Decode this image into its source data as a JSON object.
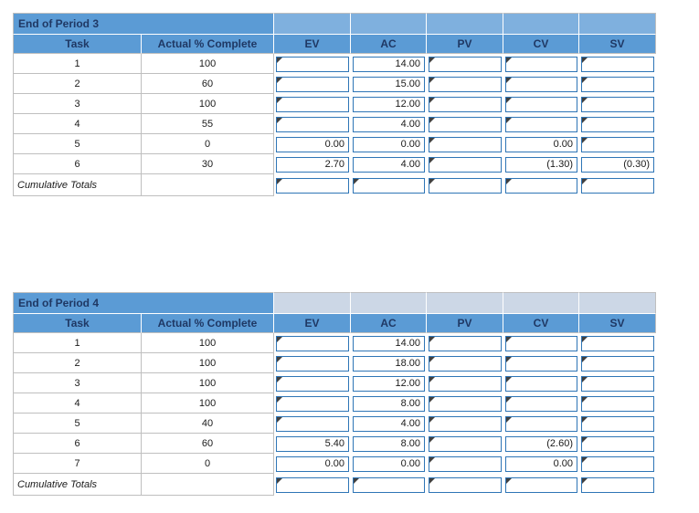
{
  "colors": {
    "header_blue": "#5b9bd5",
    "header_text": "#1f3864",
    "grid_border": "#bfbfbf",
    "box_border": "#2e75b6",
    "flag": "#404040",
    "value_text": "#1a1a1a"
  },
  "columns": [
    {
      "key": "task",
      "label": "Task"
    },
    {
      "key": "pct",
      "label": "Actual % Complete"
    },
    {
      "key": "ev",
      "label": "EV"
    },
    {
      "key": "ac",
      "label": "AC"
    },
    {
      "key": "pv",
      "label": "PV"
    },
    {
      "key": "cv",
      "label": "CV"
    },
    {
      "key": "sv",
      "label": "SV"
    }
  ],
  "tables": [
    {
      "title": "End of Period 3",
      "title_fill_color": "#7fb0de",
      "footer_label": "Cumulative Totals",
      "rows": [
        {
          "task": "1",
          "pct": "100",
          "ev": "",
          "ac": "14.00",
          "pv": "",
          "cv": "",
          "sv": ""
        },
        {
          "task": "2",
          "pct": "60",
          "ev": "",
          "ac": "15.00",
          "pv": "",
          "cv": "",
          "sv": ""
        },
        {
          "task": "3",
          "pct": "100",
          "ev": "",
          "ac": "12.00",
          "pv": "",
          "cv": "",
          "sv": ""
        },
        {
          "task": "4",
          "pct": "55",
          "ev": "",
          "ac": "4.00",
          "pv": "",
          "cv": "",
          "sv": ""
        },
        {
          "task": "5",
          "pct": "0",
          "ev": "0.00",
          "ac": "0.00",
          "pv": "",
          "cv": "0.00",
          "sv": ""
        },
        {
          "task": "6",
          "pct": "30",
          "ev": "2.70",
          "ac": "4.00",
          "pv": "",
          "cv": "(1.30)",
          "sv": "(0.30)"
        }
      ]
    },
    {
      "title": "End of Period 4",
      "title_fill_color": "#ccd7e6",
      "footer_label": "Cumulative Totals",
      "rows": [
        {
          "task": "1",
          "pct": "100",
          "ev": "",
          "ac": "14.00",
          "pv": "",
          "cv": "",
          "sv": ""
        },
        {
          "task": "2",
          "pct": "100",
          "ev": "",
          "ac": "18.00",
          "pv": "",
          "cv": "",
          "sv": ""
        },
        {
          "task": "3",
          "pct": "100",
          "ev": "",
          "ac": "12.00",
          "pv": "",
          "cv": "",
          "sv": ""
        },
        {
          "task": "4",
          "pct": "100",
          "ev": "",
          "ac": "8.00",
          "pv": "",
          "cv": "",
          "sv": ""
        },
        {
          "task": "5",
          "pct": "40",
          "ev": "",
          "ac": "4.00",
          "pv": "",
          "cv": "",
          "sv": ""
        },
        {
          "task": "6",
          "pct": "60",
          "ev": "5.40",
          "ac": "8.00",
          "pv": "",
          "cv": "(2.60)",
          "sv": ""
        },
        {
          "task": "7",
          "pct": "0",
          "ev": "0.00",
          "ac": "0.00",
          "pv": "",
          "cv": "0.00",
          "sv": ""
        }
      ]
    }
  ]
}
